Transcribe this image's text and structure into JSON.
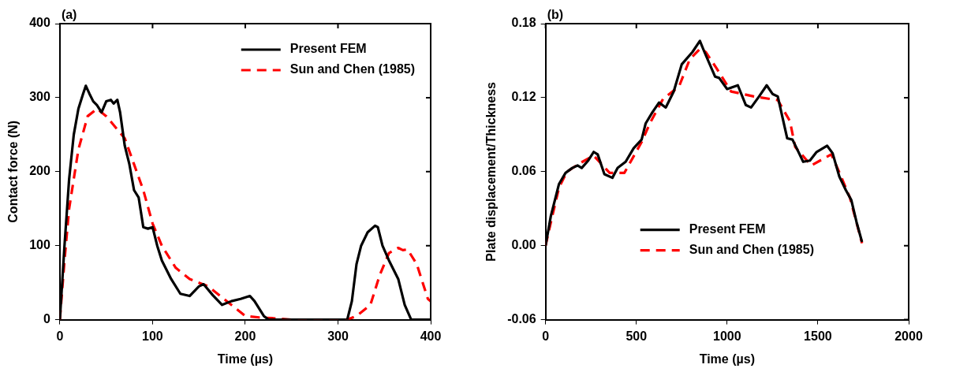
{
  "chart_data": [
    {
      "type": "line",
      "title": "(a)",
      "xlabel": "Time (µs)",
      "ylabel": "Contact force (N)",
      "xlim": [
        0,
        400
      ],
      "ylim": [
        0,
        400
      ],
      "xticks": [
        0,
        100,
        200,
        300,
        400
      ],
      "yticks": [
        0,
        100,
        200,
        300,
        400
      ],
      "grid": false,
      "legend": "top right",
      "marker": "none",
      "series": [
        {
          "name": "Present FEM",
          "color": "#000000",
          "line_style": "solid",
          "x": [
            0,
            5,
            10,
            15,
            20,
            25,
            28,
            32,
            36,
            40,
            45,
            50,
            55,
            58,
            62,
            65,
            70,
            75,
            80,
            85,
            90,
            95,
            100,
            105,
            110,
            120,
            130,
            140,
            150,
            155,
            165,
            175,
            185,
            195,
            205,
            210,
            220,
            225,
            310,
            315,
            320,
            325,
            332,
            340,
            343,
            348,
            355,
            365,
            372,
            379,
            400
          ],
          "values": [
            0,
            100,
            190,
            250,
            285,
            305,
            316,
            305,
            295,
            290,
            280,
            295,
            297,
            292,
            297,
            280,
            235,
            210,
            175,
            165,
            125,
            123,
            125,
            100,
            80,
            55,
            35,
            32,
            45,
            48,
            33,
            20,
            25,
            28,
            32,
            25,
            5,
            0,
            0,
            25,
            75,
            100,
            118,
            127,
            125,
            100,
            80,
            55,
            20,
            0,
            0
          ]
        },
        {
          "name": "Sun and Chen (1985)",
          "color": "#ff0000",
          "line_style": "dashed",
          "x": [
            0,
            5,
            10,
            20,
            30,
            40,
            50,
            60,
            70,
            80,
            90,
            100,
            110,
            125,
            140,
            160,
            175,
            190,
            200,
            215,
            230,
            250,
            310,
            320,
            335,
            345,
            355,
            365,
            370,
            375,
            385,
            397,
            400
          ],
          "values": [
            0,
            80,
            150,
            230,
            275,
            285,
            275,
            260,
            245,
            210,
            175,
            130,
            100,
            70,
            55,
            45,
            30,
            15,
            5,
            3,
            2,
            0,
            0,
            5,
            20,
            60,
            90,
            97,
            94,
            95,
            75,
            28,
            25
          ]
        }
      ]
    },
    {
      "type": "line",
      "title": "(b)",
      "xlabel": "Time (µs)",
      "ylabel": "Plate displacement/Thickness",
      "xlim": [
        0,
        2000
      ],
      "ylim": [
        -0.06,
        0.18
      ],
      "xticks": [
        0,
        500,
        1000,
        1500,
        2000
      ],
      "yticks": [
        -0.06,
        {
          "value": 0,
          "label": "0.00"
        },
        0.06,
        0.12,
        0.18
      ],
      "grid": false,
      "legend": "bottom",
      "marker": "none",
      "series": [
        {
          "name": "Present FEM",
          "color": "#000000",
          "line_style": "solid",
          "x": [
            0,
            29,
            74,
            110,
            147,
            176,
            199,
            235,
            265,
            287,
            324,
            368,
            397,
            441,
            485,
            529,
            551,
            588,
            625,
            662,
            706,
            750,
            809,
            850,
            875,
            934,
            956,
            1000,
            1059,
            1103,
            1132,
            1176,
            1218,
            1250,
            1279,
            1331,
            1360,
            1419,
            1456,
            1493,
            1551,
            1581,
            1618,
            1654,
            1684,
            1713,
            1743
          ],
          "values": [
            0,
            0.024,
            0.05,
            0.059,
            0.063,
            0.065,
            0.063,
            0.069,
            0.076,
            0.074,
            0.058,
            0.055,
            0.063,
            0.068,
            0.079,
            0.086,
            0.099,
            0.108,
            0.116,
            0.112,
            0.125,
            0.147,
            0.157,
            0.166,
            0.157,
            0.137,
            0.136,
            0.127,
            0.13,
            0.114,
            0.112,
            0.121,
            0.13,
            0.123,
            0.121,
            0.087,
            0.086,
            0.068,
            0.069,
            0.076,
            0.081,
            0.075,
            0.056,
            0.045,
            0.037,
            0.019,
            0.003
          ]
        },
        {
          "name": "Sun and Chen (1985)",
          "color": "#ff0000",
          "line_style": "dashed",
          "x": [
            0,
            37,
            74,
            118,
            191,
            265,
            353,
            434,
            529,
            574,
            647,
            735,
            794,
            853,
            882,
            941,
            1022,
            1147,
            1279,
            1346,
            1375,
            1463,
            1574,
            1625,
            1676,
            1743
          ],
          "values": [
            0,
            0.024,
            0.047,
            0.06,
            0.067,
            0.073,
            0.059,
            0.059,
            0.084,
            0.099,
            0.119,
            0.129,
            0.151,
            0.16,
            0.157,
            0.144,
            0.125,
            0.121,
            0.118,
            0.101,
            0.08,
            0.065,
            0.074,
            0.057,
            0.039,
            0.002
          ]
        }
      ]
    }
  ]
}
